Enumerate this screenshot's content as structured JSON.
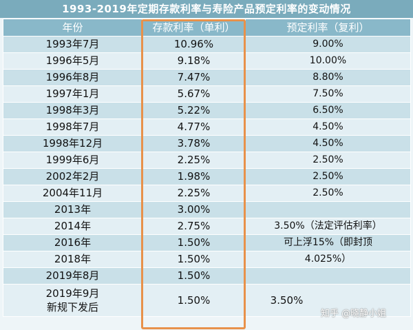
{
  "title": "1993-2019年定期存款利率与寿险产品预定利率的变动情况",
  "headers": [
    "年份",
    "存款利率（单利）",
    "预定利率（复利）"
  ],
  "rows": [
    {
      "year": "1993年7月",
      "deposit": "10.96%",
      "predetermined": "9.00%"
    },
    {
      "year": "1996年5月",
      "deposit": "9.18%",
      "predetermined": "10.00%"
    },
    {
      "year": "1996年8月",
      "deposit": "7.47%",
      "predetermined": "8.80%"
    },
    {
      "year": "1997年1月",
      "deposit": "5.67%",
      "predetermined": "7.50%"
    },
    {
      "year": "1998年3月",
      "deposit": "5.22%",
      "predetermined": "6.50%"
    },
    {
      "year": "1998年7月",
      "deposit": "4.77%",
      "predetermined": "4.50%"
    },
    {
      "year": "1998年12月",
      "deposit": "3.78%",
      "predetermined": "4.50%"
    },
    {
      "year": "1999年6月",
      "deposit": "2.25%",
      "predetermined": "2.50%"
    },
    {
      "year": "2002年2月",
      "deposit": "1.98%",
      "predetermined": "2.50%"
    },
    {
      "year": "2004年11月",
      "deposit": "2.25%",
      "predetermined": "2.50%"
    },
    {
      "year": "2013年",
      "deposit": "3.00%",
      "predetermined": ""
    },
    {
      "year": "2014年",
      "deposit": "2.75%",
      "predetermined": "3.50%（法定评估利率）"
    },
    {
      "year": "2016年",
      "deposit": "1.50%",
      "predetermined": "可上浮15%（即封顶"
    },
    {
      "year": "2018年",
      "deposit": "1.50%",
      "predetermined": "4.025%）"
    },
    {
      "year": "2019年8月",
      "deposit": "1.50%",
      "predetermined": ""
    }
  ],
  "last_row": {
    "year_line1": "2019年9月",
    "year_line2": "新规下发后",
    "deposit": "1.50%",
    "predetermined": "3.50%"
  },
  "watermark": "知乎 @晓静小姐",
  "colors": {
    "title_bg": "#7aabbc",
    "header_bg": "#89b8c9",
    "row_odd": "#c9e0e8",
    "row_even": "#e3eff4",
    "highlight_border": "#e8914a"
  }
}
